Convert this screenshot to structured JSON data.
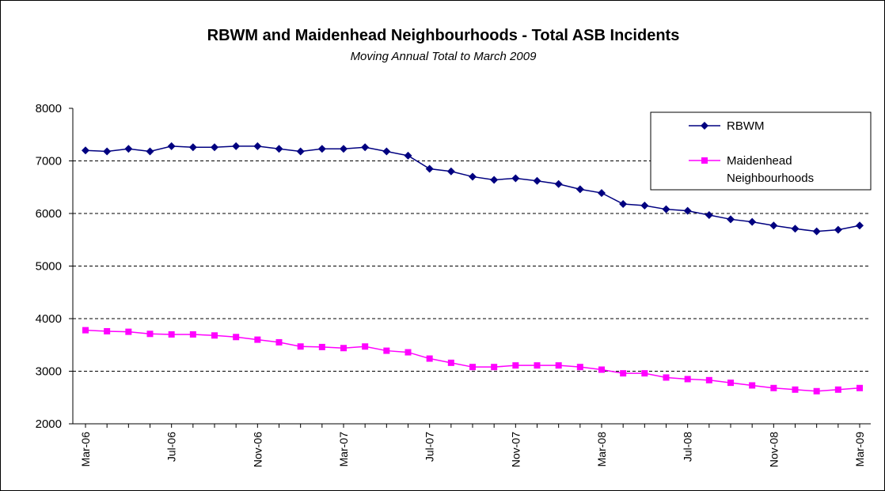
{
  "chart_data": {
    "type": "line",
    "title": "RBWM and Maidenhead Neighbourhoods - Total ASB Incidents",
    "subtitle": "Moving Annual Total to March 2009",
    "categories": [
      "Mar-06",
      null,
      null,
      null,
      "Jul-06",
      null,
      null,
      null,
      "Nov-06",
      null,
      null,
      null,
      "Mar-07",
      null,
      null,
      null,
      "Jul-07",
      null,
      null,
      null,
      "Nov-07",
      null,
      null,
      null,
      "Mar-08",
      null,
      null,
      null,
      "Jul-08",
      null,
      null,
      null,
      "Nov-08",
      null,
      null,
      null,
      "Mar-09"
    ],
    "series": [
      {
        "name": "RBWM",
        "color": "#000080",
        "marker": "diamond",
        "values": [
          7200,
          7180,
          7230,
          7180,
          7280,
          7260,
          7260,
          7280,
          7280,
          7230,
          7180,
          7230,
          7230,
          7260,
          7180,
          7100,
          6850,
          6800,
          6700,
          6640,
          6670,
          6620,
          6560,
          6460,
          6390,
          6180,
          6150,
          6080,
          6050,
          5970,
          5890,
          5840,
          5770,
          5710,
          5660,
          5690,
          5770
        ]
      },
      {
        "name": "Maidenhead Neighbourhoods",
        "color": "#ff00ff",
        "marker": "square",
        "values": [
          3780,
          3760,
          3750,
          3710,
          3700,
          3700,
          3680,
          3650,
          3600,
          3550,
          3470,
          3460,
          3440,
          3470,
          3390,
          3360,
          3240,
          3160,
          3080,
          3080,
          3110,
          3110,
          3110,
          3080,
          3030,
          2960,
          2960,
          2880,
          2850,
          2830,
          2780,
          2730,
          2680,
          2650,
          2620,
          2650,
          2680
        ]
      }
    ],
    "ylim": [
      2000,
      8000
    ],
    "yticks": [
      2000,
      3000,
      4000,
      5000,
      6000,
      7000,
      8000
    ],
    "grid": true,
    "legend": "upper right"
  }
}
